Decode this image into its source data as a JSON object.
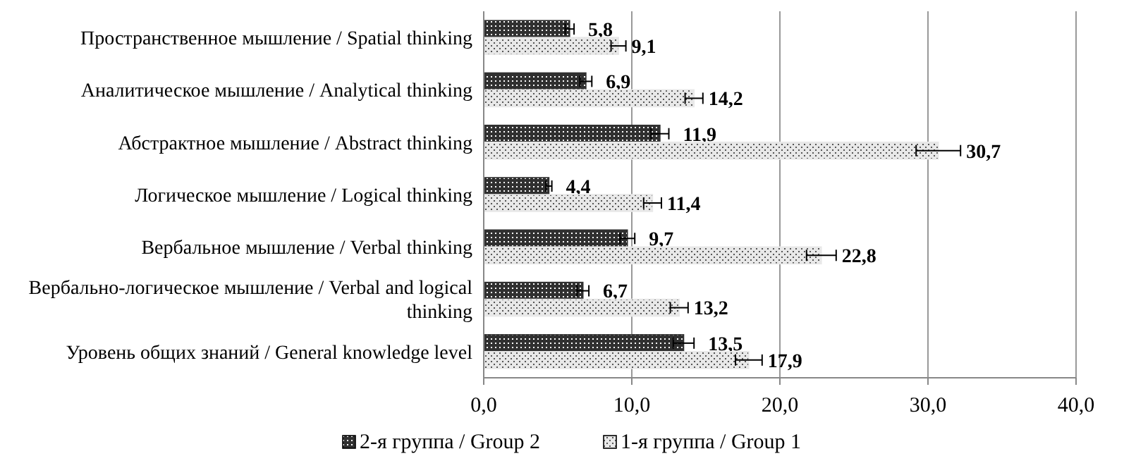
{
  "chart_data": {
    "type": "bar",
    "orientation": "horizontal",
    "categories": [
      "Пространственное мышление / Spatial thinking",
      "Аналитическое мышление / Analytical thinking",
      "Абстрактное мышление / Abstract thinking",
      "Логическое мышление / Logical thinking",
      "Вербальное мышление / Verbal thinking",
      "Вербально-логическое мышление / Verbal and logical thinking",
      "Уровень общих знаний / General knowledge level"
    ],
    "series": [
      {
        "name": "2-я группа / Group 2",
        "color": "#303030",
        "values": [
          5.8,
          6.9,
          11.9,
          4.4,
          9.7,
          6.7,
          13.5
        ],
        "errors": [
          0.3,
          0.4,
          0.6,
          0.2,
          0.5,
          0.4,
          0.7
        ],
        "value_labels": [
          "5,8",
          "6,9",
          "11,9",
          "4,4",
          "9,7",
          "6,7",
          "13,5"
        ]
      },
      {
        "name": "1-я группа / Group 1",
        "color": "#e8e8e8",
        "values": [
          9.1,
          14.2,
          30.7,
          11.4,
          22.8,
          13.2,
          17.9
        ],
        "errors": [
          0.5,
          0.6,
          1.5,
          0.6,
          1.0,
          0.6,
          0.9
        ],
        "value_labels": [
          "9,1",
          "14,2",
          "30,7",
          "11,4",
          "22,8",
          "13,2",
          "17,9"
        ]
      }
    ],
    "xlim": [
      0,
      40
    ],
    "xticks": [
      {
        "value": 0,
        "label": "0,0"
      },
      {
        "value": 10,
        "label": "10,0"
      },
      {
        "value": 20,
        "label": "20,0"
      },
      {
        "value": 30,
        "label": "30,0"
      },
      {
        "value": 40,
        "label": "40,0"
      }
    ],
    "grid": "x",
    "legend": "bottom"
  }
}
